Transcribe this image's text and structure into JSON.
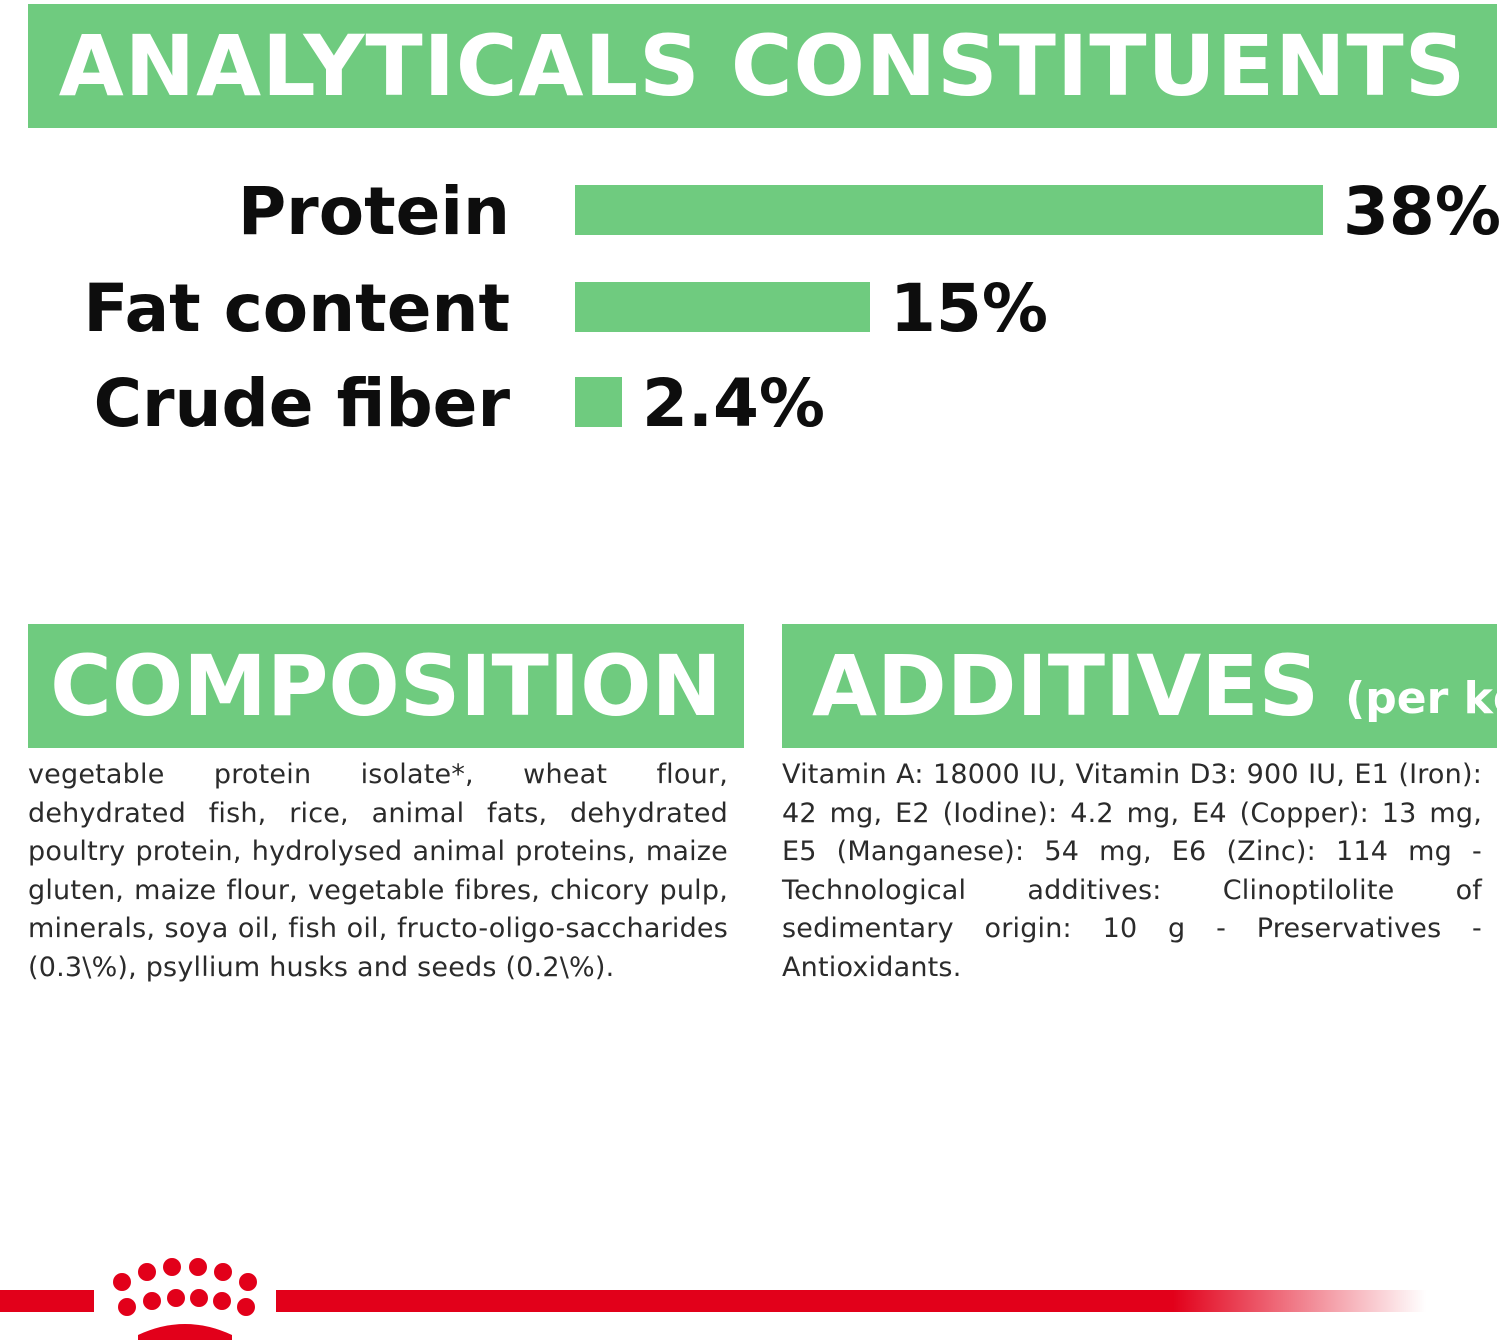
{
  "headings": {
    "analytical": "ANALYTICALS CONSTITUENTS",
    "composition": "COMPOSITION",
    "additives": "ADDITIVES",
    "additives_sub": "(per kg)"
  },
  "chart_data": {
    "type": "bar",
    "orientation": "horizontal",
    "categories": [
      "Protein",
      "Fat content",
      "Crude fiber"
    ],
    "values": [
      38,
      15,
      2.4
    ],
    "value_labels": [
      "38%",
      "15%",
      "2.4%"
    ],
    "xlim": [
      0,
      38
    ],
    "grid": false,
    "color": "#6fcb7f"
  },
  "composition_text": "vegetable protein isolate*, wheat flour, dehydrated fish, rice, animal fats, dehydrated poultry protein, hydrolysed animal proteins, maize gluten, maize flour, vegetable fibres, chicory pulp, minerals, soya oil, fish oil, fructo-oligo-saccharides (0.3\\%), psyllium husks and seeds (0.2\\%).",
  "additives_text": "Vitamin A: 18000 IU, Vitamin D3: 900 IU, E1 (Iron): 42 mg, E2 (Iodine): 4.2 mg, E4 (Copper): 13 mg, E5 (Manganese): 54 mg, E6 (Zinc): 114 mg - Technological additives: Clinoptilolite of sedimentary origin: 10 g - Preservatives - Antioxidants.",
  "brand": {
    "logo_icon": "royal-canin-crown-icon",
    "accent": "#e2001a",
    "green": "#6fcb7f"
  }
}
